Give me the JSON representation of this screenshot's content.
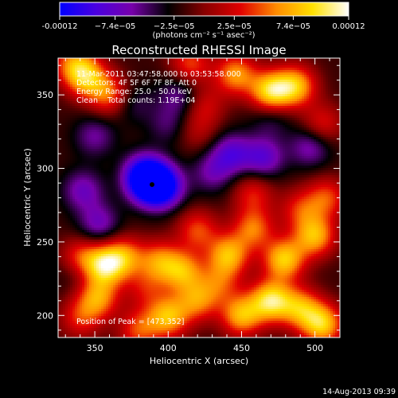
{
  "chart_data": {
    "type": "heatmap",
    "title": "Reconstructed RHESSI Image",
    "xlabel": "Heliocentric X (arcsec)",
    "ylabel": "Heliocentric Y (arcsec)",
    "xlim": [
      325,
      517
    ],
    "ylim": [
      185,
      375
    ],
    "x_ticks": [
      "350",
      "400",
      "450",
      "500"
    ],
    "y_ticks": [
      "200",
      "250",
      "300",
      "350"
    ],
    "colorbar": {
      "ticks": [
        "-0.00012",
        "−7.4e−05",
        "−2.5e−05",
        "2.5e−05",
        "7.4e−05",
        "0.00012"
      ],
      "tick_values": [
        -0.00012,
        -7.4e-05,
        -2.5e-05,
        2.5e-05,
        7.4e-05,
        0.00012
      ],
      "range": [
        -0.00012,
        0.00012
      ],
      "units_line": "(photons cm⁻² s⁻¹ asec⁻²)",
      "stops": [
        "#0000ff",
        "#4a00e0",
        "#7700aa",
        "#000000",
        "#880000",
        "#e00000",
        "#ff8c00",
        "#ffe000",
        "#ffffff"
      ]
    },
    "info_lines": [
      "11-Mar-2011 03:47:58.000 to 03:53:58.000",
      "Detectors: 4F 5F 6F 7F 8F, Att 0",
      "Energy Range: 25.0 - 50.0 keV",
      "Clean    Total counts: 1.19E+04"
    ],
    "peak_label": "Position of Peak = [473,352]",
    "peak_position": [
      473,
      352
    ],
    "minimum_marker": [
      389,
      289
    ],
    "footer_date": "14-Aug-2013 09:39",
    "blobs": [
      {
        "x": 388,
        "y": 290,
        "v": -0.00012
      },
      {
        "x": 397,
        "y": 287,
        "v": -8e-05
      },
      {
        "x": 383,
        "y": 296,
        "v": -7e-05
      },
      {
        "x": 443,
        "y": 310,
        "v": -6e-05
      },
      {
        "x": 353,
        "y": 262,
        "v": -5e-05
      },
      {
        "x": 342,
        "y": 285,
        "v": -5e-05
      },
      {
        "x": 465,
        "y": 307,
        "v": -6e-05
      },
      {
        "x": 497,
        "y": 315,
        "v": -5e-05
      },
      {
        "x": 408,
        "y": 350,
        "v": -4e-05
      },
      {
        "x": 350,
        "y": 322,
        "v": -4e-05
      },
      {
        "x": 338,
        "y": 232,
        "v": -4e-05
      },
      {
        "x": 430,
        "y": 297,
        "v": -4e-05
      },
      {
        "x": 400,
        "y": 330,
        "v": -3e-05
      },
      {
        "x": 470,
        "y": 335,
        "v": -3e-05
      },
      {
        "x": 375,
        "y": 345,
        "v": -3e-05
      },
      {
        "x": 470,
        "y": 352,
        "v": 0.00011
      },
      {
        "x": 487,
        "y": 356,
        "v": 9e-05
      },
      {
        "x": 446,
        "y": 364,
        "v": 8e-05
      },
      {
        "x": 344,
        "y": 362,
        "v": 9e-05
      },
      {
        "x": 360,
        "y": 350,
        "v": 7e-05
      },
      {
        "x": 415,
        "y": 371,
        "v": 6e-05
      },
      {
        "x": 335,
        "y": 372,
        "v": 6e-05
      },
      {
        "x": 357,
        "y": 234,
        "v": 0.0001
      },
      {
        "x": 340,
        "y": 238,
        "v": 8e-05
      },
      {
        "x": 370,
        "y": 240,
        "v": 7e-05
      },
      {
        "x": 352,
        "y": 212,
        "v": 8e-05
      },
      {
        "x": 394,
        "y": 237,
        "v": 7e-05
      },
      {
        "x": 410,
        "y": 230,
        "v": 8e-05
      },
      {
        "x": 420,
        "y": 258,
        "v": 6e-05
      },
      {
        "x": 441,
        "y": 241,
        "v": 9e-05
      },
      {
        "x": 458,
        "y": 259,
        "v": 7e-05
      },
      {
        "x": 479,
        "y": 238,
        "v": 0.0001
      },
      {
        "x": 500,
        "y": 254,
        "v": 9e-05
      },
      {
        "x": 508,
        "y": 280,
        "v": 6e-05
      },
      {
        "x": 470,
        "y": 210,
        "v": 0.00011
      },
      {
        "x": 450,
        "y": 200,
        "v": 9e-05
      },
      {
        "x": 490,
        "y": 205,
        "v": 8e-05
      },
      {
        "x": 505,
        "y": 194,
        "v": 0.0001
      },
      {
        "x": 400,
        "y": 199,
        "v": 9e-05
      },
      {
        "x": 420,
        "y": 210,
        "v": 7e-05
      },
      {
        "x": 380,
        "y": 190,
        "v": 6e-05
      },
      {
        "x": 435,
        "y": 222,
        "v": 5e-05
      },
      {
        "x": 385,
        "y": 218,
        "v": 4e-05
      },
      {
        "x": 340,
        "y": 198,
        "v": 5e-05
      },
      {
        "x": 458,
        "y": 283,
        "v": 5e-05
      },
      {
        "x": 490,
        "y": 272,
        "v": 5e-05
      },
      {
        "x": 505,
        "y": 330,
        "v": 5e-05
      },
      {
        "x": 425,
        "y": 343,
        "v": 4e-05
      },
      {
        "x": 420,
        "y": 325,
        "v": 3e-05
      }
    ]
  }
}
